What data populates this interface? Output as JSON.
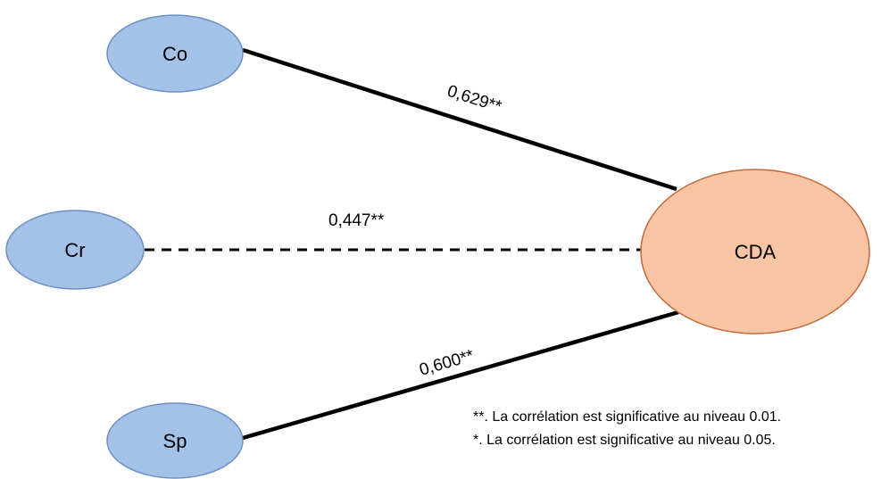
{
  "nodes": {
    "co": {
      "label": "Co",
      "fill": "#a4c2e8",
      "stroke": "#6d90c2"
    },
    "cr": {
      "label": "Cr",
      "fill": "#a4c2e8",
      "stroke": "#6d90c2"
    },
    "sp": {
      "label": "Sp",
      "fill": "#a4c2e8",
      "stroke": "#6d90c2"
    },
    "cda": {
      "label": "CDA",
      "fill": "#f8c4a4",
      "stroke": "#c26a3a"
    }
  },
  "edges": [
    {
      "from": "Co",
      "to": "CDA",
      "label": "0,629**",
      "style": "solid"
    },
    {
      "from": "Cr",
      "to": "CDA",
      "label": "0,447**",
      "style": "dashed"
    },
    {
      "from": "Sp",
      "to": "CDA",
      "label": "0,600**",
      "style": "solid"
    }
  ],
  "notes": [
    "**. La corrélation est significative au niveau 0.01.",
    "*. La corrélation est significative au niveau 0.05."
  ]
}
